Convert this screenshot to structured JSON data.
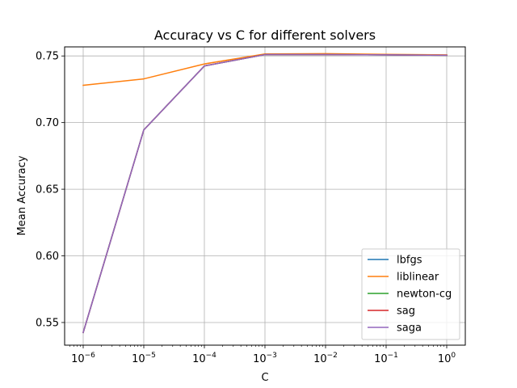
{
  "chart_data": {
    "type": "line",
    "title": "Accuracy vs C for different solvers",
    "xlabel": "C",
    "ylabel": "Mean Accuracy",
    "x_scale": "log",
    "x": [
      1e-06,
      1e-05,
      0.0001,
      0.001,
      0.01,
      0.1,
      1
    ],
    "x_tick_labels": [
      {
        "base": "10",
        "exp": "−6"
      },
      {
        "base": "10",
        "exp": "−5"
      },
      {
        "base": "10",
        "exp": "−4"
      },
      {
        "base": "10",
        "exp": "−3"
      },
      {
        "base": "10",
        "exp": "−2"
      },
      {
        "base": "10",
        "exp": "−1"
      },
      {
        "base": "10",
        "exp": "0"
      }
    ],
    "y_ticks": [
      0.55,
      0.6,
      0.65,
      0.7,
      0.75
    ],
    "y_tick_labels": [
      "0.55",
      "0.60",
      "0.65",
      "0.70",
      "0.75"
    ],
    "ylim": [
      0.533,
      0.7568
    ],
    "grid": true,
    "legend_position": "lower-right",
    "series": [
      {
        "name": "lbfgs",
        "color": "#1f77b4",
        "values": [
          0.5425,
          0.6945,
          0.7425,
          0.751,
          0.751,
          0.7508,
          0.7505
        ]
      },
      {
        "name": "liblinear",
        "color": "#ff7f0e",
        "values": [
          0.728,
          0.7328,
          0.744,
          0.7515,
          0.7517,
          0.7512,
          0.7508
        ]
      },
      {
        "name": "newton-cg",
        "color": "#2ca02c",
        "values": [
          0.5425,
          0.6945,
          0.7425,
          0.751,
          0.751,
          0.7508,
          0.7505
        ]
      },
      {
        "name": "sag",
        "color": "#d62728",
        "values": [
          0.5425,
          0.6945,
          0.7425,
          0.751,
          0.751,
          0.7508,
          0.7505
        ]
      },
      {
        "name": "saga",
        "color": "#9467bd",
        "values": [
          0.5425,
          0.6945,
          0.7425,
          0.751,
          0.751,
          0.7508,
          0.7505
        ]
      }
    ]
  }
}
